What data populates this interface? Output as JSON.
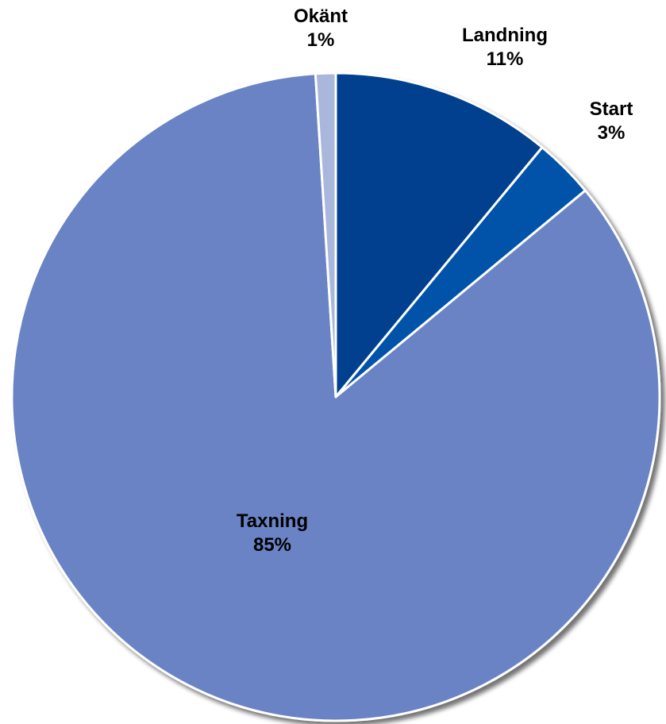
{
  "chart_data": {
    "type": "pie",
    "title": "",
    "start_angle_deg": 0,
    "direction": "clockwise",
    "slices": [
      {
        "label": "Landning",
        "value": 11,
        "display": "11%",
        "color": "#03408E"
      },
      {
        "label": "Start",
        "value": 3,
        "display": "3%",
        "color": "#0252A8"
      },
      {
        "label": "Taxning",
        "value": 85,
        "display": "85%",
        "color": "#6B83C5"
      },
      {
        "label": "Okänt",
        "value": 1,
        "display": "1%",
        "color": "#AAB7DC"
      }
    ]
  }
}
